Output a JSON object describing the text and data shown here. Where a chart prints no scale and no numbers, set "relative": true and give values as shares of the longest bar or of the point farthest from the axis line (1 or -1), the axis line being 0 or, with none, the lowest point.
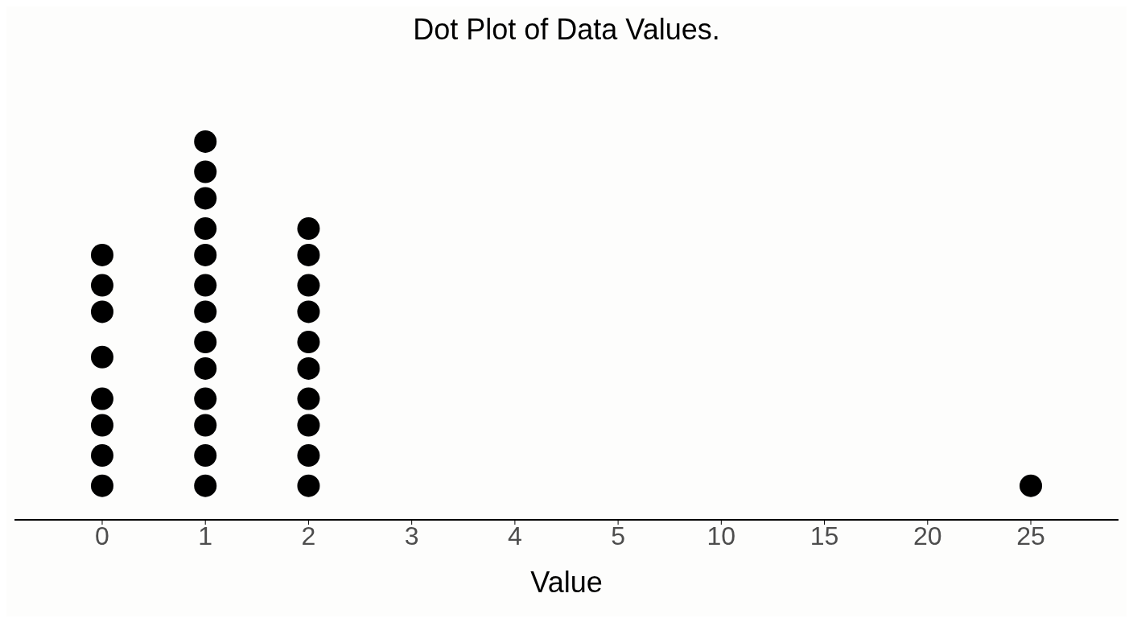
{
  "chart_data": {
    "type": "scatter",
    "title": "Dot Plot of Data Values.",
    "xlabel": "Value",
    "categories": [
      "0",
      "1",
      "2",
      "3",
      "4",
      "5",
      "10",
      "15",
      "20",
      "25"
    ],
    "relative": true,
    "marker": "circle",
    "tick_labels": "x",
    "series": [
      {
        "color": "#000000",
        "x": [
          "0",
          "0",
          "0",
          "0",
          "0",
          "0",
          "0",
          "0",
          "1",
          "1",
          "1",
          "1",
          "1",
          "1",
          "1",
          "1",
          "1",
          "1",
          "1",
          "1",
          "1",
          "2",
          "2",
          "2",
          "2",
          "2",
          "2",
          "2",
          "2",
          "2",
          "2",
          "25"
        ],
        "values": [
          0.09,
          0.17,
          0.25,
          0.32,
          0.43,
          0.55,
          0.62,
          0.7,
          0.09,
          0.17,
          0.25,
          0.32,
          0.4,
          0.47,
          0.55,
          0.62,
          0.7,
          0.77,
          0.85,
          0.92,
          1.0,
          0.09,
          0.17,
          0.25,
          0.32,
          0.4,
          0.47,
          0.55,
          0.62,
          0.7,
          0.77,
          0.09
        ]
      }
    ]
  }
}
